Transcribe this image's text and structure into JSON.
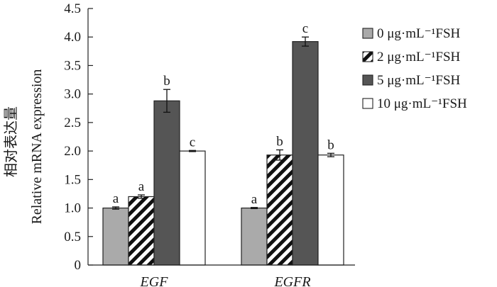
{
  "chart_data": {
    "type": "bar",
    "categories": [
      "EGF",
      "EGFR"
    ],
    "ylabel_cn": "相对表达量",
    "ylabel": "Relative mRNA expression",
    "ylim": [
      0,
      4.5
    ],
    "yticks": [
      "0",
      "0.5",
      "1.0",
      "1.5",
      "2.0",
      "2.5",
      "3.0",
      "3.5",
      "4.0",
      "4.5"
    ],
    "grid": false,
    "legend_position": "right",
    "series": [
      {
        "name": "0 μg·mL⁻¹FSH",
        "fill": "#aaaaaa",
        "pattern": "solid",
        "values": [
          1.0,
          1.0
        ],
        "errors": [
          0.02,
          0.01
        ],
        "letters": [
          "a",
          "a"
        ]
      },
      {
        "name": "2 μg·mL⁻¹FSH",
        "fill": "#ffffff",
        "pattern": "hatch",
        "values": [
          1.2,
          1.93
        ],
        "errors": [
          0.03,
          0.09
        ],
        "letters": [
          "a",
          "b"
        ]
      },
      {
        "name": "5 μg·mL⁻¹FSH",
        "fill": "#555555",
        "pattern": "solid",
        "values": [
          2.88,
          3.92
        ],
        "errors": [
          0.2,
          0.08
        ],
        "letters": [
          "b",
          "c"
        ]
      },
      {
        "name": "10 μg·mL⁻¹FSH",
        "fill": "#ffffff",
        "pattern": "solid",
        "values": [
          2.0,
          1.93
        ],
        "errors": [
          0.01,
          0.03
        ],
        "letters": [
          "c",
          "b"
        ]
      }
    ]
  }
}
